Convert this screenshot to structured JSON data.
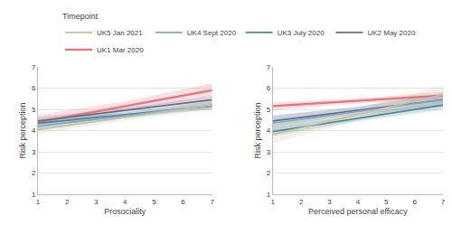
{
  "chart_data": [
    {
      "type": "line",
      "xlabel": "Prosociality",
      "ylabel": "Risk perception",
      "x": [
        1,
        4,
        7
      ],
      "xlim": [
        1,
        7
      ],
      "ylim": [
        1,
        7
      ],
      "xticks": [
        1,
        2,
        3,
        4,
        5,
        6,
        7
      ],
      "yticks": [
        1,
        2,
        3,
        4,
        5,
        6,
        7
      ],
      "grid": "y",
      "legend": "top",
      "legend_title": "Timepoint",
      "series": [
        {
          "name": "UK1 Mar 2020",
          "color": "#E8737A",
          "values": [
            4.4,
            5.15,
            5.9
          ],
          "lower": [
            4.07,
            4.93,
            5.57
          ],
          "upper": [
            4.73,
            5.37,
            6.23
          ]
        },
        {
          "name": "UK2 May 2020",
          "color": "#6B6B8A",
          "values": [
            4.45,
            4.95,
            5.45
          ],
          "lower": [
            4.27,
            4.83,
            5.27
          ],
          "upper": [
            4.63,
            5.07,
            5.63
          ]
        },
        {
          "name": "UK3 July 2020",
          "color": "#4A8A95",
          "values": [
            4.35,
            4.75,
            5.15
          ],
          "lower": [
            4.2,
            4.65,
            5.0
          ],
          "upper": [
            4.5,
            4.85,
            5.3
          ]
        },
        {
          "name": "UK4 Sept 2020",
          "color": "#7AAAC8",
          "values": [
            4.2,
            4.7,
            5.2
          ],
          "lower": [
            4.02,
            4.58,
            5.02
          ],
          "upper": [
            4.38,
            4.82,
            5.38
          ]
        },
        {
          "name": "UK5 Jan 2021",
          "color": "#C8BFA0",
          "values": [
            4.05,
            4.625,
            5.2
          ],
          "lower": [
            3.825,
            4.475,
            4.975
          ],
          "upper": [
            4.275,
            4.775,
            5.425
          ]
        }
      ]
    },
    {
      "type": "line",
      "xlabel": "Perceived personal efficacy",
      "ylabel": "Risk perception",
      "x": [
        1,
        4,
        7
      ],
      "xlim": [
        1,
        7
      ],
      "ylim": [
        1,
        7
      ],
      "xticks": [
        1,
        2,
        3,
        4,
        5,
        6,
        7
      ],
      "yticks": [
        1,
        2,
        3,
        4,
        5,
        6,
        7
      ],
      "grid": "y",
      "series": [
        {
          "name": "UK1 Mar 2020",
          "color": "#E8737A",
          "values": [
            5.15,
            5.4,
            5.65
          ],
          "lower": [
            4.97,
            5.28,
            5.47
          ],
          "upper": [
            5.33,
            5.52,
            5.83
          ]
        },
        {
          "name": "UK2 May 2020",
          "color": "#6B6B8A",
          "values": [
            4.45,
            4.95,
            5.45
          ],
          "lower": [
            4.18,
            4.77,
            5.18
          ],
          "upper": [
            4.72,
            5.13,
            5.72
          ]
        },
        {
          "name": "UK3 July 2020",
          "color": "#4A8A95",
          "values": [
            3.95,
            4.575,
            5.2
          ],
          "lower": [
            3.74,
            4.435,
            4.99
          ],
          "upper": [
            4.16,
            4.715,
            5.41
          ]
        },
        {
          "name": "UK4 Sept 2020",
          "color": "#7AAAC8",
          "values": [
            4.35,
            4.9,
            5.45
          ],
          "lower": [
            4.02,
            4.68,
            5.12
          ],
          "upper": [
            4.68,
            5.12,
            5.78
          ]
        },
        {
          "name": "UK5 Jan 2021",
          "color": "#C8BFA0",
          "values": [
            3.82,
            4.76,
            5.7
          ],
          "lower": [
            3.4,
            4.48,
            5.28
          ],
          "upper": [
            4.24,
            5.04,
            6.12
          ]
        }
      ]
    }
  ]
}
